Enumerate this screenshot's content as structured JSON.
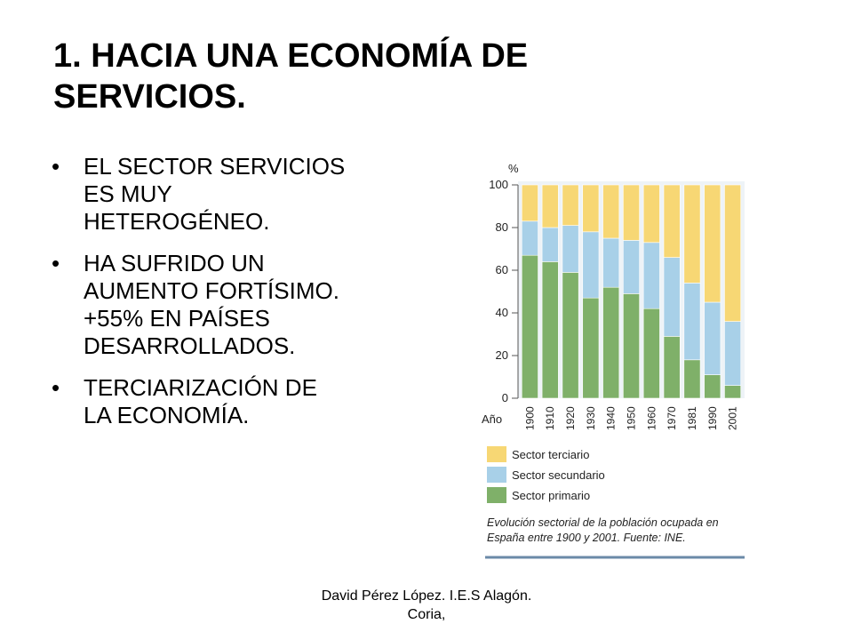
{
  "slide": {
    "title_lines": [
      "1. HACIA UNA ECONOMÍA DE",
      "SERVICIOS."
    ],
    "bullets": [
      {
        "lines": [
          "EL SECTOR SERVICIOS",
          "ES MUY",
          "HETEROGÉNEO."
        ]
      },
      {
        "lines": [
          "HA SUFRIDO UN",
          "AUMENTO FORTÍSIMO.",
          "+55% EN PAÍSES",
          "DESARROLLADOS."
        ]
      },
      {
        "lines": [
          "TERCIARIZACIÓN DE",
          "LA ECONOMÍA."
        ]
      }
    ],
    "bullet_glyph": "•",
    "footer_lines": [
      "David Pérez López. I.E.S Alagón.",
      "Coria,"
    ]
  },
  "chart_data": {
    "type": "bar",
    "stacked": true,
    "percent_stacked": true,
    "ylabel": "%",
    "xlabel": "Año",
    "ylim": [
      0,
      100
    ],
    "yticks": [
      0,
      20,
      40,
      60,
      80,
      100
    ],
    "categories": [
      "1900",
      "1910",
      "1920",
      "1930",
      "1940",
      "1950",
      "1960",
      "1970",
      "1981",
      "1990",
      "2001"
    ],
    "series": [
      {
        "name": "Sector primario",
        "color": "#7fb069",
        "values": [
          67,
          64,
          59,
          47,
          52,
          49,
          42,
          29,
          18,
          11,
          6
        ]
      },
      {
        "name": "Sector secundario",
        "color": "#a8d0e8",
        "values": [
          16,
          16,
          22,
          31,
          23,
          25,
          31,
          37,
          36,
          34,
          30
        ]
      },
      {
        "name": "Sector terciario",
        "color": "#f7d774",
        "values": [
          17,
          20,
          19,
          22,
          25,
          26,
          27,
          34,
          46,
          55,
          64
        ]
      }
    ],
    "legend_order": [
      "Sector terciario",
      "Sector secundario",
      "Sector primario"
    ],
    "legend_position": "bottom",
    "caption_lines": [
      "Evolución sectorial de la población ocupada en",
      "España entre 1900 y 2001. Fuente: INE."
    ],
    "axis_color": "#6b8aa8"
  }
}
